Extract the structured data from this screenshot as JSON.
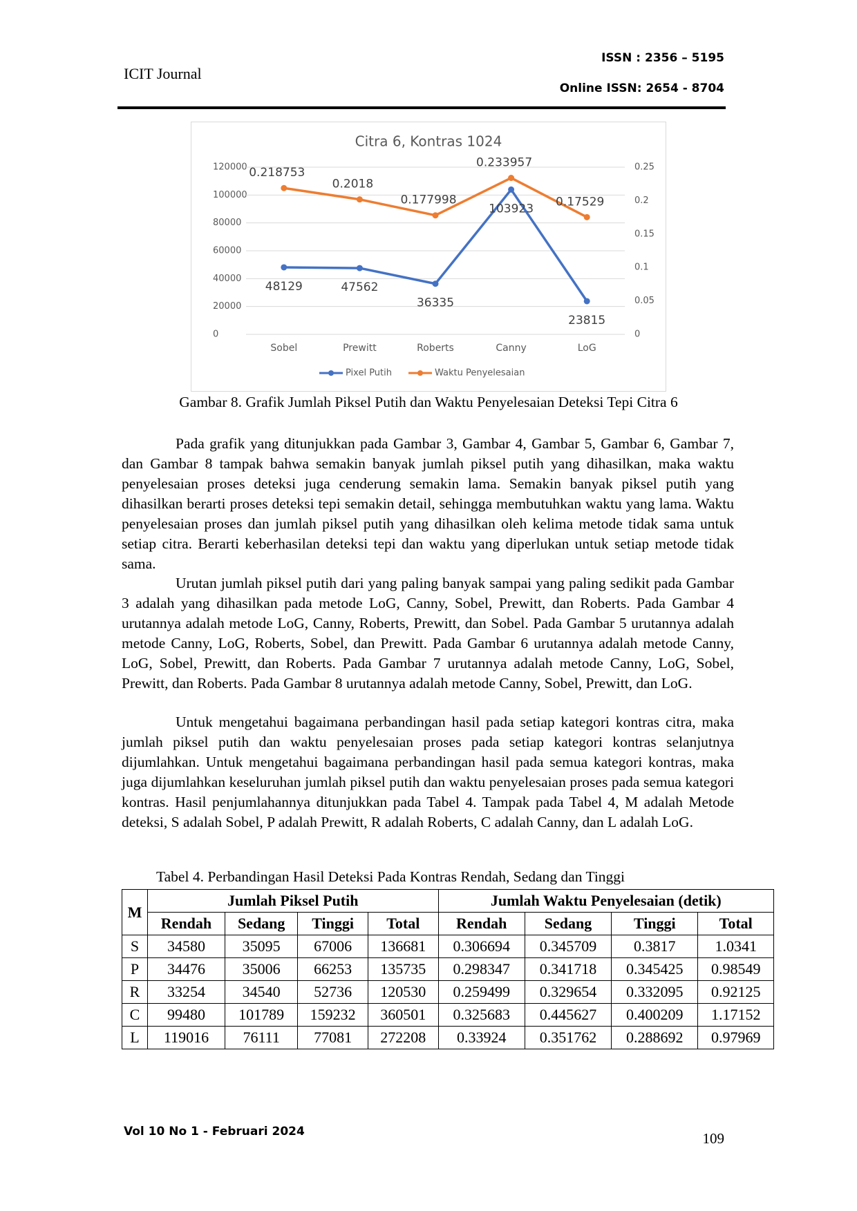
{
  "header": {
    "journal": "ICIT Journal",
    "issn": "ISSN : 2356 – 5195",
    "online_issn": "Online ISSN: 2654 - 8704"
  },
  "chart_data": {
    "type": "line",
    "title": "Citra 6, Kontras 1024",
    "categories": [
      "Sobel",
      "Prewitt",
      "Roberts",
      "Canny",
      "LoG"
    ],
    "series": [
      {
        "name": "Pixel Putih",
        "color": "#4472c4",
        "axis": "y",
        "values": [
          48129,
          47562,
          36335,
          103923,
          23815
        ]
      },
      {
        "name": "Waktu Penyelesaian",
        "color": "#ed7d31",
        "axis": "y2",
        "values": [
          0.218753,
          0.2018,
          0.177998,
          0.233957,
          0.17529
        ]
      }
    ],
    "ylim": [
      0,
      120000
    ],
    "yticks": [
      0,
      20000,
      40000,
      60000,
      80000,
      100000,
      120000
    ],
    "y2lim": [
      0,
      0.25
    ],
    "y2ticks": [
      0,
      0.05,
      0.1,
      0.15,
      0.2,
      0.25
    ],
    "grid": true,
    "legend": "bottom"
  },
  "caption": "Gambar 8. Grafik Jumlah Piksel Putih dan Waktu Penyelesaian Deteksi Tepi Citra 6",
  "paragraphs": [
    "Pada grafik yang ditunjukkan pada Gambar 3, Gambar 4, Gambar 5, Gambar 6, Gambar 7, dan Gambar 8 tampak bahwa semakin banyak jumlah piksel putih yang dihasilkan, maka waktu penyelesaian proses deteksi juga cenderung semakin lama. Semakin banyak piksel putih yang dihasilkan berarti proses deteksi tepi semakin detail, sehingga membutuhkan waktu yang lama. Waktu penyelesaian proses dan jumlah piksel putih yang dihasilkan oleh kelima metode tidak sama untuk setiap citra. Berarti keberhasilan deteksi tepi dan waktu yang diperlukan untuk setiap metode tidak sama.",
    "Urutan jumlah piksel putih dari yang paling banyak sampai yang paling sedikit pada Gambar 3 adalah yang dihasilkan pada metode LoG, Canny, Sobel, Prewitt, dan Roberts. Pada Gambar 4 urutannya adalah metode LoG, Canny, Roberts, Prewitt, dan Sobel. Pada Gambar 5 urutannya adalah metode Canny, LoG, Roberts, Sobel, dan Prewitt. Pada Gambar 6 urutannya adalah metode Canny, LoG, Sobel, Prewitt, dan Roberts. Pada Gambar 7 urutannya adalah metode Canny, LoG, Sobel, Prewitt, dan Roberts. Pada Gambar 8 urutannya adalah metode Canny, Sobel, Prewitt, dan LoG.",
    "Untuk mengetahui bagaimana perbandingan hasil pada setiap kategori kontras citra, maka jumlah piksel putih dan waktu penyelesaian proses pada setiap kategori kontras selanjutnya dijumlahkan. Untuk mengetahui bagaimana perbandingan hasil pada semua kategori kontras, maka juga dijumlahkan keseluruhan jumlah piksel putih dan waktu penyelesaian proses pada semua kategori kontras. Hasil penjumlahannya ditunjukkan pada Tabel 4. Tampak pada Tabel 4, M adalah Metode deteksi, S adalah Sobel, P adalah Prewitt, R adalah Roberts, C adalah Canny, dan L adalah LoG."
  ],
  "table": {
    "caption": "Tabel 4. Perbandingan Hasil Deteksi Pada Kontras Rendah, Sedang dan Tinggi",
    "corner": "M",
    "groups": [
      "Jumlah Piksel Putih",
      "Jumlah Waktu Penyelesaian (detik)"
    ],
    "columns": [
      "Rendah",
      "Sedang",
      "Tinggi",
      "Total",
      "Rendah",
      "Sedang",
      "Tinggi",
      "Total"
    ],
    "rows": [
      [
        "S",
        34580,
        35095,
        67006,
        136681,
        0.306694,
        0.345709,
        0.3817,
        1.0341
      ],
      [
        "P",
        34476,
        35006,
        66253,
        135735,
        0.298347,
        0.341718,
        0.345425,
        0.98549
      ],
      [
        "R",
        33254,
        34540,
        52736,
        120530,
        0.259499,
        0.329654,
        0.332095,
        0.92125
      ],
      [
        "C",
        99480,
        101789,
        159232,
        360501,
        0.325683,
        0.445627,
        0.400209,
        1.17152
      ],
      [
        "L",
        119016,
        76111,
        77081,
        272208,
        0.33924,
        0.351762,
        0.288692,
        0.97969
      ]
    ]
  },
  "footer": {
    "volume": "Vol 10 No 1 - Februari 2024",
    "page": 109
  }
}
